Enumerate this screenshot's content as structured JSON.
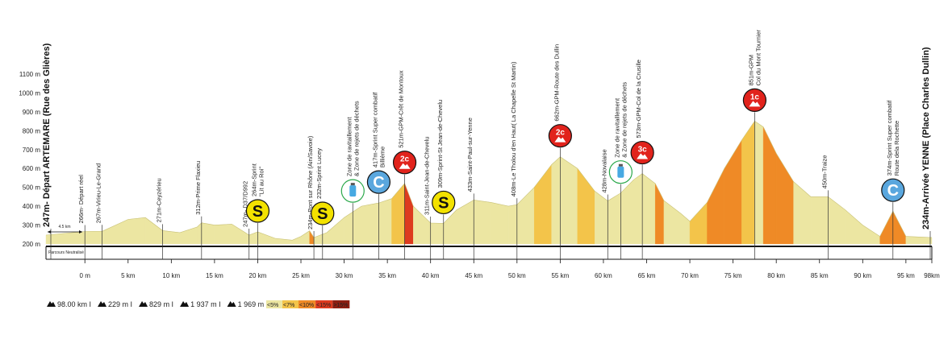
{
  "chart_data": {
    "type": "area",
    "x": [
      -4.5,
      0,
      2,
      5,
      7,
      9,
      11,
      13,
      13.5,
      15,
      17,
      18.5,
      19,
      20,
      22,
      24,
      25,
      26,
      26.5,
      28,
      30,
      32,
      34,
      35.5,
      37,
      38,
      40,
      41.5,
      43,
      45,
      47,
      49,
      50,
      52,
      54,
      55,
      57,
      59,
      60.5,
      62,
      63.5,
      64.5,
      66,
      67,
      69,
      70,
      72,
      74,
      76,
      77.5,
      78.5,
      80,
      82,
      84,
      86,
      88,
      90,
      92,
      93.5,
      95,
      98
    ],
    "values": [
      247,
      266,
      267,
      330,
      340,
      271,
      260,
      290,
      312,
      300,
      305,
      262,
      247,
      264,
      230,
      220,
      240,
      270,
      234,
      260,
      340,
      400,
      417,
      440,
      521,
      400,
      311,
      309,
      380,
      433,
      420,
      400,
      408,
      500,
      620,
      662,
      600,
      480,
      428,
      470,
      540,
      573,
      520,
      430,
      360,
      320,
      420,
      600,
      750,
      851,
      820,
      680,
      530,
      450,
      450,
      380,
      300,
      240,
      374,
      240,
      234
    ],
    "xlim": [
      -4.5,
      98
    ],
    "ylim": [
      200,
      1100
    ],
    "yticks": [
      {
        "value": 200,
        "label": "200 m"
      },
      {
        "value": 300,
        "label": "300 m"
      },
      {
        "value": 400,
        "label": "400 m"
      },
      {
        "value": 500,
        "label": "500 m"
      },
      {
        "value": 600,
        "label": "600 m"
      },
      {
        "value": 700,
        "label": "700 m"
      },
      {
        "value": 800,
        "label": "800 m"
      },
      {
        "value": 900,
        "label": "900 m"
      },
      {
        "value": 1000,
        "label": "1000 m"
      },
      {
        "value": 1100,
        "label": "1100 m"
      }
    ],
    "xticks": [
      {
        "value": 0,
        "label": "0 m"
      },
      {
        "value": 5,
        "label": "5 km"
      },
      {
        "value": 10,
        "label": "10 km"
      },
      {
        "value": 15,
        "label": "15 km"
      },
      {
        "value": 20,
        "label": "20 km"
      },
      {
        "value": 25,
        "label": "25 km"
      },
      {
        "value": 30,
        "label": "30 km"
      },
      {
        "value": 35,
        "label": "35 km"
      },
      {
        "value": 40,
        "label": "40 km"
      },
      {
        "value": 45,
        "label": "45 km"
      },
      {
        "value": 50,
        "label": "50 km"
      },
      {
        "value": 55,
        "label": "55 km"
      },
      {
        "value": 60,
        "label": "60 km"
      },
      {
        "value": 65,
        "label": "65 km"
      },
      {
        "value": 70,
        "label": "70 km"
      },
      {
        "value": 75,
        "label": "75 km"
      },
      {
        "value": 80,
        "label": "80 km"
      },
      {
        "value": 85,
        "label": "85 km"
      },
      {
        "value": 90,
        "label": "90 km"
      },
      {
        "value": 95,
        "label": "95 km"
      },
      {
        "value": 98,
        "label": "98km"
      }
    ],
    "gradient_legend": [
      {
        "label": "<5%",
        "value": 5,
        "color": "#ece6a2"
      },
      {
        "label": "<7%",
        "value": 7,
        "color": "#f3c44a"
      },
      {
        "label": "<10%",
        "value": 10,
        "color": "#ef8a26"
      },
      {
        "label": "<15%",
        "value": 15,
        "color": "#dd3b1f"
      },
      {
        "label": ">15%",
        "value": 15,
        "color": "#8e1f12"
      }
    ],
    "neutral_distance": "4.5 km",
    "neutral_label": "Parcours Neutralisé",
    "stats": [
      "98.00 km I",
      "229 m I",
      "829 m I",
      "1 937 m I",
      "1 969 m"
    ],
    "annotations": [
      {
        "km": -4.5,
        "lines": [
          "247m- Départ ARTEMARE (Rue des Glières)"
        ],
        "bold": true
      },
      {
        "km": 0,
        "lines": [
          "266m- Départ réel"
        ]
      },
      {
        "km": 2,
        "lines": [
          "267m-Virieu-Le-Grand"
        ]
      },
      {
        "km": 9,
        "lines": [
          "271m-Ceyzérieu"
        ]
      },
      {
        "km": 13.5,
        "lines": [
          "312m-Prime Flaxieu"
        ]
      },
      {
        "km": 19,
        "lines": [
          "247m- D37/D992"
        ]
      },
      {
        "km": 20,
        "lines": [
          "264m-Sprint",
          "\"Lit au Roi\""
        ],
        "icon": "S"
      },
      {
        "km": 26.5,
        "lines": [
          "234m-Pont sur Rhône (Ain/Savoie)"
        ]
      },
      {
        "km": 27.5,
        "lines": [
          "232m-Sprint Lucey"
        ],
        "icon": "S"
      },
      {
        "km": 31,
        "lines": [
          "Zone de ravitaillement",
          "& Zone de rejets de déchets"
        ],
        "kind": "water"
      },
      {
        "km": 34,
        "lines": [
          "417m-Sprint Super combatif",
          "Billième"
        ],
        "icon": "C"
      },
      {
        "km": 37,
        "lines": [
          "521m-GPM-Crêt de Montoux"
        ],
        "icon": "2c"
      },
      {
        "km": 40,
        "lines": [
          "311m-Saint-Jean-de-Chevelu"
        ]
      },
      {
        "km": 41.5,
        "lines": [
          "309m-Sprint-St Jean-de-Chevelu"
        ],
        "icon": "S"
      },
      {
        "km": 45,
        "lines": [
          "433m-Saint-Paul-sur-Yenne"
        ]
      },
      {
        "km": 50,
        "lines": [
          "408m-Le Tholou d'en Haut( La Chapelle St Martin)"
        ]
      },
      {
        "km": 55,
        "lines": [
          "662m-GPM-Route des Dullin"
        ],
        "icon": "2c"
      },
      {
        "km": 60.5,
        "lines": [
          "428m-Novalaise"
        ]
      },
      {
        "km": 62,
        "lines": [
          "Zone de ravitaillement",
          "& Zone de rejets de déchets"
        ],
        "kind": "water"
      },
      {
        "km": 64.5,
        "lines": [
          "573m-GPM-Col de la Crusille"
        ],
        "icon": "3c"
      },
      {
        "km": 77.5,
        "lines": [
          "851m-GPM",
          "Col du Mont Tournier"
        ],
        "icon": "1c"
      },
      {
        "km": 86,
        "lines": [
          "450m-Traize"
        ]
      },
      {
        "km": 93.5,
        "lines": [
          "374m-Sprint Super combatif",
          "Route dela Rochette"
        ],
        "icon": "C"
      },
      {
        "km": 98,
        "lines": [
          "234m-Arrivée YENNE (Place Charles Dullin)"
        ],
        "bold": true
      }
    ]
  }
}
